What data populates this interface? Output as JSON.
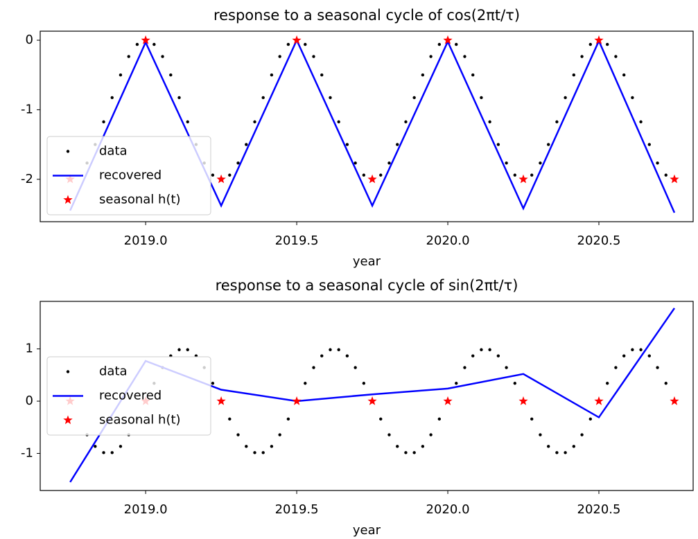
{
  "chart_data": [
    {
      "type": "line",
      "title": "response to a seasonal cycle of cos(2πt/τ)",
      "xlabel": "year",
      "xlim": [
        2018.651,
        2020.812
      ],
      "ylim": [
        -2.61,
        0.13
      ],
      "xticks": [
        {
          "value": 2019,
          "label": "2019.0"
        },
        {
          "value": 2019.5,
          "label": "2019.5"
        },
        {
          "value": 2020,
          "label": "2020.0"
        },
        {
          "value": 2020.5,
          "label": "2020.5"
        }
      ],
      "yticks": [
        -2,
        -1,
        0
      ],
      "legend": "lower left",
      "series": [
        {
          "name": "data",
          "color": "#000000",
          "style": "points",
          "x": [
            2018.806,
            2018.833,
            2018.861,
            2018.889,
            2018.917,
            2018.944,
            2018.972,
            2019.0,
            2019.028,
            2019.056,
            2019.083,
            2019.111,
            2019.139,
            2019.167,
            2019.194,
            2019.222,
            2019.25,
            2019.278,
            2019.306,
            2019.333,
            2019.361,
            2019.389,
            2019.417,
            2019.444,
            2019.472,
            2019.5,
            2019.528,
            2019.556,
            2019.583,
            2019.611,
            2019.639,
            2019.667,
            2019.694,
            2019.722,
            2019.75,
            2019.778,
            2019.806,
            2019.833,
            2019.861,
            2019.889,
            2019.917,
            2019.944,
            2019.972,
            2020.0,
            2020.028,
            2020.056,
            2020.083,
            2020.111,
            2020.139,
            2020.167,
            2020.194,
            2020.222,
            2020.25,
            2020.278,
            2020.306,
            2020.333,
            2020.361,
            2020.389,
            2020.417,
            2020.444,
            2020.472,
            2020.5,
            2020.528,
            2020.556,
            2020.583,
            2020.611,
            2020.639,
            2020.667,
            2020.694,
            2020.722
          ],
          "values": [
            -1.766,
            -1.5,
            -1.174,
            -0.826,
            -0.5,
            -0.234,
            -0.06,
            0,
            -0.06,
            -0.234,
            -0.5,
            -0.826,
            -1.174,
            -1.5,
            -1.766,
            -1.94,
            -2,
            -1.94,
            -1.766,
            -1.5,
            -1.174,
            -0.826,
            -0.5,
            -0.234,
            -0.06,
            0,
            -0.06,
            -0.234,
            -0.5,
            -0.826,
            -1.174,
            -1.5,
            -1.766,
            -1.94,
            -2,
            -1.94,
            -1.766,
            -1.5,
            -1.174,
            -0.826,
            -0.5,
            -0.234,
            -0.06,
            0,
            -0.06,
            -0.234,
            -0.5,
            -0.826,
            -1.174,
            -1.5,
            -1.766,
            -1.94,
            -2,
            -1.94,
            -1.766,
            -1.5,
            -1.174,
            -0.826,
            -0.5,
            -0.234,
            -0.06,
            0,
            -0.06,
            -0.234,
            -0.5,
            -0.826,
            -1.174,
            -1.5,
            -1.766,
            -1.94
          ]
        },
        {
          "name": "recovered",
          "color": "#0000ff",
          "style": "line",
          "x": [
            2018.75,
            2019.0,
            2019.25,
            2019.5,
            2019.75,
            2020.0,
            2020.25,
            2020.5,
            2020.75
          ],
          "values": [
            -2.45,
            -0.03,
            -2.38,
            0,
            -2.38,
            -0.02,
            -2.42,
            -0.01,
            -2.48
          ]
        },
        {
          "name": "seasonal h(t)",
          "color": "#ff0000",
          "style": "star",
          "x": [
            2018.75,
            2019.0,
            2019.25,
            2019.5,
            2019.75,
            2020.0,
            2020.25,
            2020.5,
            2020.75
          ],
          "values": [
            -2,
            0,
            -2,
            0,
            -2,
            0,
            -2,
            0,
            -2
          ]
        }
      ]
    },
    {
      "type": "line",
      "title": "response to a seasonal cycle of sin(2πt/τ)",
      "xlabel": "year",
      "xlim": [
        2018.651,
        2020.812
      ],
      "ylim": [
        -1.71,
        1.91
      ],
      "xticks": [
        {
          "value": 2019,
          "label": "2019.0"
        },
        {
          "value": 2019.5,
          "label": "2019.5"
        },
        {
          "value": 2020,
          "label": "2020.0"
        },
        {
          "value": 2020.5,
          "label": "2020.5"
        }
      ],
      "yticks": [
        -1,
        0,
        1
      ],
      "legend": "center left",
      "series": [
        {
          "name": "data",
          "color": "#000000",
          "style": "points",
          "x": [
            2018.806,
            2018.833,
            2018.861,
            2018.889,
            2018.917,
            2018.944,
            2018.972,
            2019.0,
            2019.028,
            2019.056,
            2019.083,
            2019.111,
            2019.139,
            2019.167,
            2019.194,
            2019.222,
            2019.25,
            2019.278,
            2019.306,
            2019.333,
            2019.361,
            2019.389,
            2019.417,
            2019.444,
            2019.472,
            2019.5,
            2019.528,
            2019.556,
            2019.583,
            2019.611,
            2019.639,
            2019.667,
            2019.694,
            2019.722,
            2019.75,
            2019.778,
            2019.806,
            2019.833,
            2019.861,
            2019.889,
            2019.917,
            2019.944,
            2019.972,
            2020.0,
            2020.028,
            2020.056,
            2020.083,
            2020.111,
            2020.139,
            2020.167,
            2020.194,
            2020.222,
            2020.25,
            2020.278,
            2020.306,
            2020.333,
            2020.361,
            2020.389,
            2020.417,
            2020.444,
            2020.472,
            2020.5,
            2020.528,
            2020.556,
            2020.583,
            2020.611,
            2020.639,
            2020.667,
            2020.694,
            2020.722
          ],
          "values": [
            -0.643,
            -0.866,
            -0.985,
            -0.985,
            -0.866,
            -0.643,
            -0.342,
            0,
            0.342,
            0.643,
            0.866,
            0.985,
            0.985,
            0.866,
            0.643,
            0.342,
            0,
            -0.342,
            -0.643,
            -0.866,
            -0.985,
            -0.985,
            -0.866,
            -0.643,
            -0.342,
            0,
            0.342,
            0.643,
            0.866,
            0.985,
            0.985,
            0.866,
            0.643,
            0.342,
            0,
            -0.342,
            -0.643,
            -0.866,
            -0.985,
            -0.985,
            -0.866,
            -0.643,
            -0.342,
            0,
            0.342,
            0.643,
            0.866,
            0.985,
            0.985,
            0.866,
            0.643,
            0.342,
            0,
            -0.342,
            -0.643,
            -0.866,
            -0.985,
            -0.985,
            -0.866,
            -0.643,
            -0.342,
            0,
            0.342,
            0.643,
            0.866,
            0.985,
            0.985,
            0.866,
            0.643,
            0.342
          ]
        },
        {
          "name": "recovered",
          "color": "#0000ff",
          "style": "line",
          "x": [
            2018.75,
            2019.0,
            2019.25,
            2019.5,
            2019.75,
            2020.0,
            2020.25,
            2020.5,
            2020.75
          ],
          "values": [
            -1.55,
            0.77,
            0.22,
            0,
            0.13,
            0.24,
            0.52,
            -0.31,
            1.78
          ]
        },
        {
          "name": "seasonal h(t)",
          "color": "#ff0000",
          "style": "star",
          "x": [
            2018.75,
            2019.0,
            2019.25,
            2019.5,
            2019.75,
            2020.0,
            2020.25,
            2020.5,
            2020.75
          ],
          "values": [
            0,
            0,
            0,
            0,
            0,
            0,
            0,
            0,
            0
          ]
        }
      ]
    }
  ]
}
